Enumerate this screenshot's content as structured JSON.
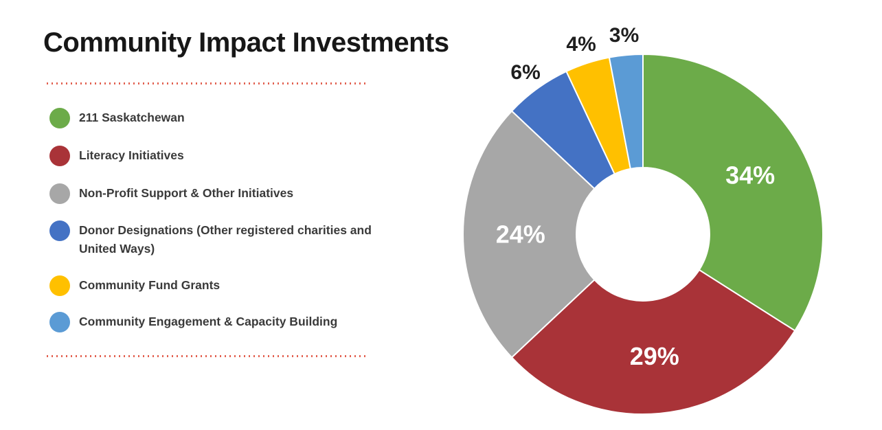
{
  "title": "Community Impact Investments",
  "divider_color": "#e2604f",
  "legend": {
    "position": "left",
    "items": [
      {
        "label": "211 Saskatchewan",
        "color": "#6cab49"
      },
      {
        "label": "Literacy Initiatives",
        "color": "#a93338"
      },
      {
        "label": "Non-Profit Support & Other Initiatives",
        "color": "#a7a7a7"
      },
      {
        "label": "Donor Designations (Other registered charities and United Ways)",
        "color": "#4472c4"
      },
      {
        "label": "Community Fund Grants",
        "color": "#ffc000"
      },
      {
        "label": "Community Engagement & Capacity Building",
        "color": "#5b9bd5"
      }
    ]
  },
  "chart_data": {
    "type": "pie",
    "donut": true,
    "title": "Community Impact Investments",
    "categories": [
      "211 Saskatchewan",
      "Literacy Initiatives",
      "Non-Profit Support & Other Initiatives",
      "Donor Designations (Other registered charities and United Ways)",
      "Community Fund Grants",
      "Community Engagement & Capacity Building"
    ],
    "values": [
      34,
      29,
      24,
      6,
      4,
      3
    ],
    "labels": [
      "34%",
      "29%",
      "24%",
      "6%",
      "4%",
      "3%"
    ],
    "colors": [
      "#6cab49",
      "#a93338",
      "#a7a7a7",
      "#4472c4",
      "#ffc000",
      "#5b9bd5"
    ],
    "start_angle_deg": 0,
    "direction": "clockwise",
    "inner_radius_ratio": 0.37,
    "legend_position": "left",
    "grid": false,
    "label_placement": {
      "inside_threshold_pct": 10,
      "inside_color": "#ffffff",
      "outside_color": "#1f1f1f"
    }
  }
}
